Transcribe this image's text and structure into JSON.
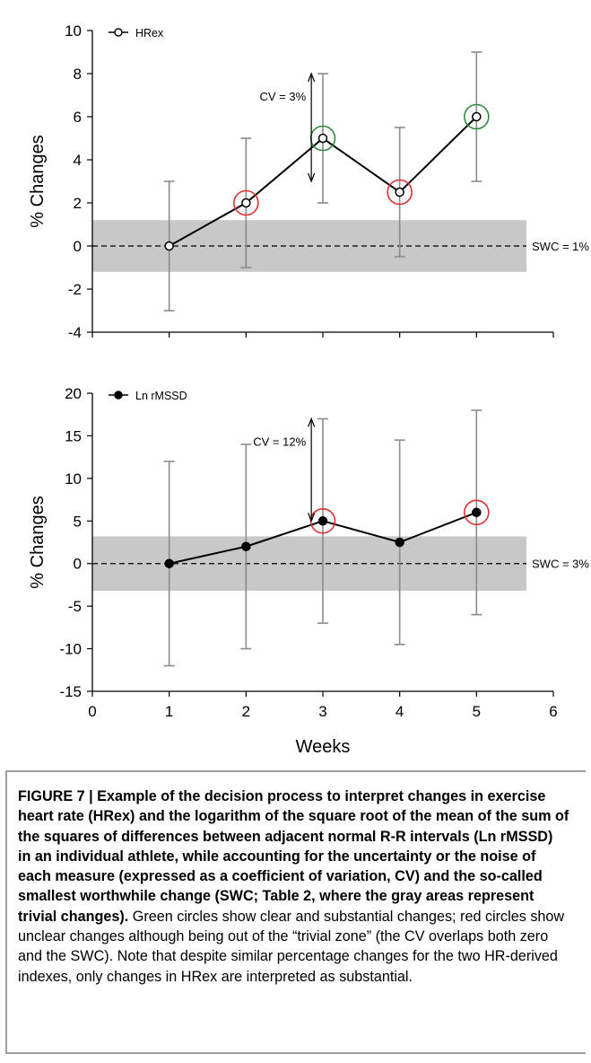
{
  "chart_data": [
    {
      "type": "line",
      "ylabel": "% Changes",
      "xlabel": "",
      "ylim": [
        -4,
        10
      ],
      "yticks": [
        -4,
        -2,
        0,
        2,
        4,
        6,
        8,
        10
      ],
      "xlim": [
        0,
        6
      ],
      "series": [
        {
          "name": "HRex",
          "marker": "open-circle",
          "x": [
            1,
            2,
            3,
            4,
            5
          ],
          "y": [
            0,
            2,
            5,
            2.5,
            6
          ],
          "error_low": [
            -3,
            -1,
            2,
            -0.5,
            3
          ],
          "error_high": [
            3,
            5,
            8,
            5.5,
            9
          ]
        }
      ],
      "highlight_circles": [
        {
          "x": 2,
          "y": 2,
          "color": "red"
        },
        {
          "x": 3,
          "y": 5,
          "color": "green"
        },
        {
          "x": 4,
          "y": 2.5,
          "color": "red"
        },
        {
          "x": 5,
          "y": 6,
          "color": "green"
        }
      ],
      "trivial_band": [
        -1.2,
        1.2
      ],
      "swc_label": "SWC = 1%",
      "cv_label": "CV = 3%",
      "cv_arrow": {
        "x": 2.85,
        "from": 3,
        "to": 8
      }
    },
    {
      "type": "line",
      "ylabel": "% Changes",
      "xlabel": "Weeks",
      "ylim": [
        -15,
        20
      ],
      "yticks": [
        -15,
        -10,
        -5,
        0,
        5,
        10,
        15,
        20
      ],
      "xlim": [
        0,
        6
      ],
      "xticks": [
        0,
        1,
        2,
        3,
        4,
        5,
        6
      ],
      "series": [
        {
          "name": "Ln rMSSD",
          "marker": "filled-circle",
          "x": [
            1,
            2,
            3,
            4,
            5
          ],
          "y": [
            0,
            2,
            5,
            2.5,
            6
          ],
          "error_low": [
            -12,
            -10,
            -7,
            -9.5,
            -6
          ],
          "error_high": [
            12,
            14,
            17,
            14.5,
            18
          ]
        }
      ],
      "highlight_circles": [
        {
          "x": 3,
          "y": 5,
          "color": "red"
        },
        {
          "x": 5,
          "y": 6,
          "color": "red"
        }
      ],
      "trivial_band": [
        -3.2,
        3.2
      ],
      "swc_label": "SWC = 3%",
      "cv_label": "CV = 12%",
      "cv_arrow": {
        "x": 2.85,
        "from": 5,
        "to": 17
      }
    }
  ],
  "colors": {
    "band": "#c8c8c8",
    "errorbar": "#8c8c8c",
    "line": "#000000",
    "highlight_red": "#e03030",
    "highlight_green": "#2e8b3e",
    "caption_border": "#9e9e9e"
  },
  "caption": {
    "figure_label": "FIGURE 7 | Example of the decision process to interpret changes in exercise heart rate (HRex) and the logarithm of the square root of the mean of the sum of the squares of differences between adjacent normal R-R intervals (Ln rMSSD) in an individual athlete, while accounting for the uncertainty or the noise of each measure (expressed as a coefficient of variation, CV) and the so-called smallest worthwhile change (SWC; Table 2, where the gray areas represent trivial changes).",
    "body": " Green circles show clear and substantial changes; red circles show unclear changes although being out of the “trivial zone” (the CV overlaps both zero and the SWC). Note that despite similar percentage changes for the two HR-derived indexes, only changes in HRex are interpreted as substantial."
  }
}
